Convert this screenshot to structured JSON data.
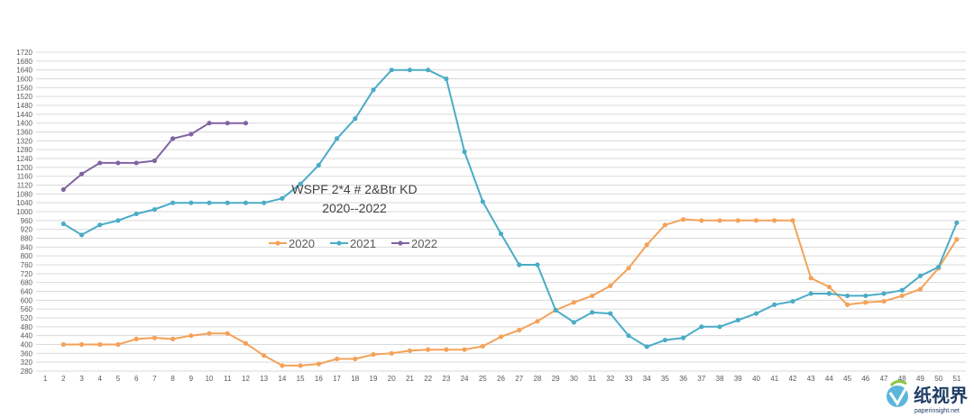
{
  "chart_data": {
    "type": "line",
    "title": "WSPF 2*4 # 2&Btr KD",
    "subtitle": "2020--2022",
    "xlabel": "",
    "ylabel": "",
    "x": [
      1,
      2,
      3,
      4,
      5,
      6,
      7,
      8,
      9,
      10,
      11,
      12,
      13,
      14,
      15,
      16,
      17,
      18,
      19,
      20,
      21,
      22,
      23,
      24,
      25,
      26,
      27,
      28,
      29,
      30,
      31,
      32,
      33,
      34,
      35,
      36,
      37,
      38,
      39,
      40,
      41,
      42,
      43,
      44,
      45,
      46,
      47,
      48,
      49,
      50,
      51
    ],
    "xlim": [
      1,
      51
    ],
    "ylim": [
      280,
      1720
    ],
    "yticks": [
      280,
      320,
      360,
      400,
      440,
      480,
      520,
      560,
      600,
      640,
      680,
      720,
      760,
      800,
      840,
      880,
      920,
      960,
      1000,
      1040,
      1080,
      1120,
      1160,
      1200,
      1240,
      1280,
      1320,
      1360,
      1400,
      1440,
      1480,
      1520,
      1560,
      1600,
      1640,
      1680,
      1720
    ],
    "grid": true,
    "legend_position": "center-left",
    "series": [
      {
        "name": "2020",
        "color": "#f4a259",
        "x": [
          2,
          3,
          4,
          5,
          6,
          7,
          8,
          9,
          10,
          11,
          12,
          13,
          14,
          15,
          16,
          17,
          18,
          19,
          20,
          21,
          22,
          23,
          24,
          25,
          26,
          27,
          28,
          29,
          30,
          31,
          32,
          33,
          34,
          35,
          36,
          37,
          38,
          39,
          40,
          41,
          42,
          43,
          44,
          45,
          46,
          47,
          48,
          49,
          50,
          51
        ],
        "values": [
          400,
          400,
          400,
          400,
          425,
          430,
          425,
          440,
          450,
          450,
          405,
          350,
          305,
          305,
          312,
          335,
          335,
          355,
          360,
          372,
          377,
          377,
          377,
          392,
          435,
          465,
          505,
          555,
          590,
          620,
          665,
          745,
          850,
          940,
          965,
          960,
          960,
          960,
          960,
          960,
          960,
          700,
          660,
          580,
          590,
          595,
          620,
          650,
          745,
          875
        ]
      },
      {
        "name": "2021",
        "color": "#4bacc6",
        "x": [
          2,
          3,
          4,
          5,
          6,
          7,
          8,
          9,
          10,
          11,
          12,
          13,
          14,
          15,
          16,
          17,
          18,
          19,
          20,
          21,
          22,
          23,
          24,
          25,
          26,
          27,
          28,
          29,
          30,
          31,
          32,
          33,
          34,
          35,
          36,
          37,
          38,
          39,
          40,
          41,
          42,
          43,
          44,
          45,
          46,
          47,
          48,
          49,
          50,
          51
        ],
        "values": [
          945,
          895,
          940,
          960,
          990,
          1010,
          1040,
          1040,
          1040,
          1040,
          1040,
          1040,
          1060,
          1125,
          1210,
          1330,
          1420,
          1550,
          1640,
          1640,
          1640,
          1600,
          1270,
          1045,
          900,
          760,
          760,
          555,
          500,
          545,
          540,
          440,
          390,
          420,
          430,
          480,
          480,
          510,
          540,
          580,
          595,
          630,
          630,
          620,
          620,
          630,
          645,
          710,
          750,
          950
        ]
      },
      {
        "name": "2022",
        "color": "#8064a2",
        "x": [
          2,
          3,
          4,
          5,
          6,
          7,
          8,
          9,
          10,
          11,
          12
        ],
        "values": [
          1100,
          1170,
          1220,
          1220,
          1220,
          1230,
          1330,
          1350,
          1400,
          1400,
          1400
        ]
      }
    ]
  },
  "watermark": {
    "text": "纸视界",
    "url": "paperinsight.net",
    "icon": "paperinsight-logo-icon"
  }
}
